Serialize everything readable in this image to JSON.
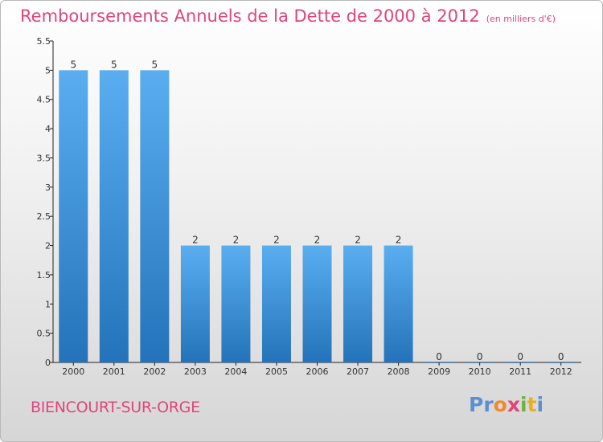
{
  "title": "Remboursements Annuels de la Dette de 2000 à 2012",
  "subtitle": "(en milliers d'€)",
  "commune": "BIENCOURT-SUR-ORGE",
  "logo_text": "Proxiti",
  "colors": {
    "title": "#e0457b",
    "bar_top": "#5aaef0",
    "bar_bottom": "#2473ba",
    "logo": [
      "#5b8fd0",
      "#f08a2c",
      "#e0457b",
      "#6cb33f",
      "#e8b020"
    ]
  },
  "chart_data": {
    "type": "bar",
    "categories": [
      "2000",
      "2001",
      "2002",
      "2003",
      "2004",
      "2005",
      "2006",
      "2007",
      "2008",
      "2009",
      "2010",
      "2011",
      "2012"
    ],
    "values": [
      5,
      5,
      5,
      2,
      2,
      2,
      2,
      2,
      2,
      0,
      0,
      0,
      0
    ],
    "data_labels": [
      "5",
      "5",
      "5",
      "2",
      "2",
      "2",
      "2",
      "2",
      "2",
      "0",
      "0",
      "0",
      "0"
    ],
    "yticks": [
      "0",
      "0.5",
      "1",
      "1.5",
      "2",
      "2.5",
      "3",
      "3.5",
      "4",
      "4.5",
      "5",
      "5.5"
    ],
    "ytick_values": [
      0,
      0.5,
      1,
      1.5,
      2,
      2.5,
      3,
      3.5,
      4,
      4.5,
      5,
      5.5
    ],
    "ylim": [
      0,
      5.5
    ],
    "grid": false,
    "legend": "none"
  }
}
